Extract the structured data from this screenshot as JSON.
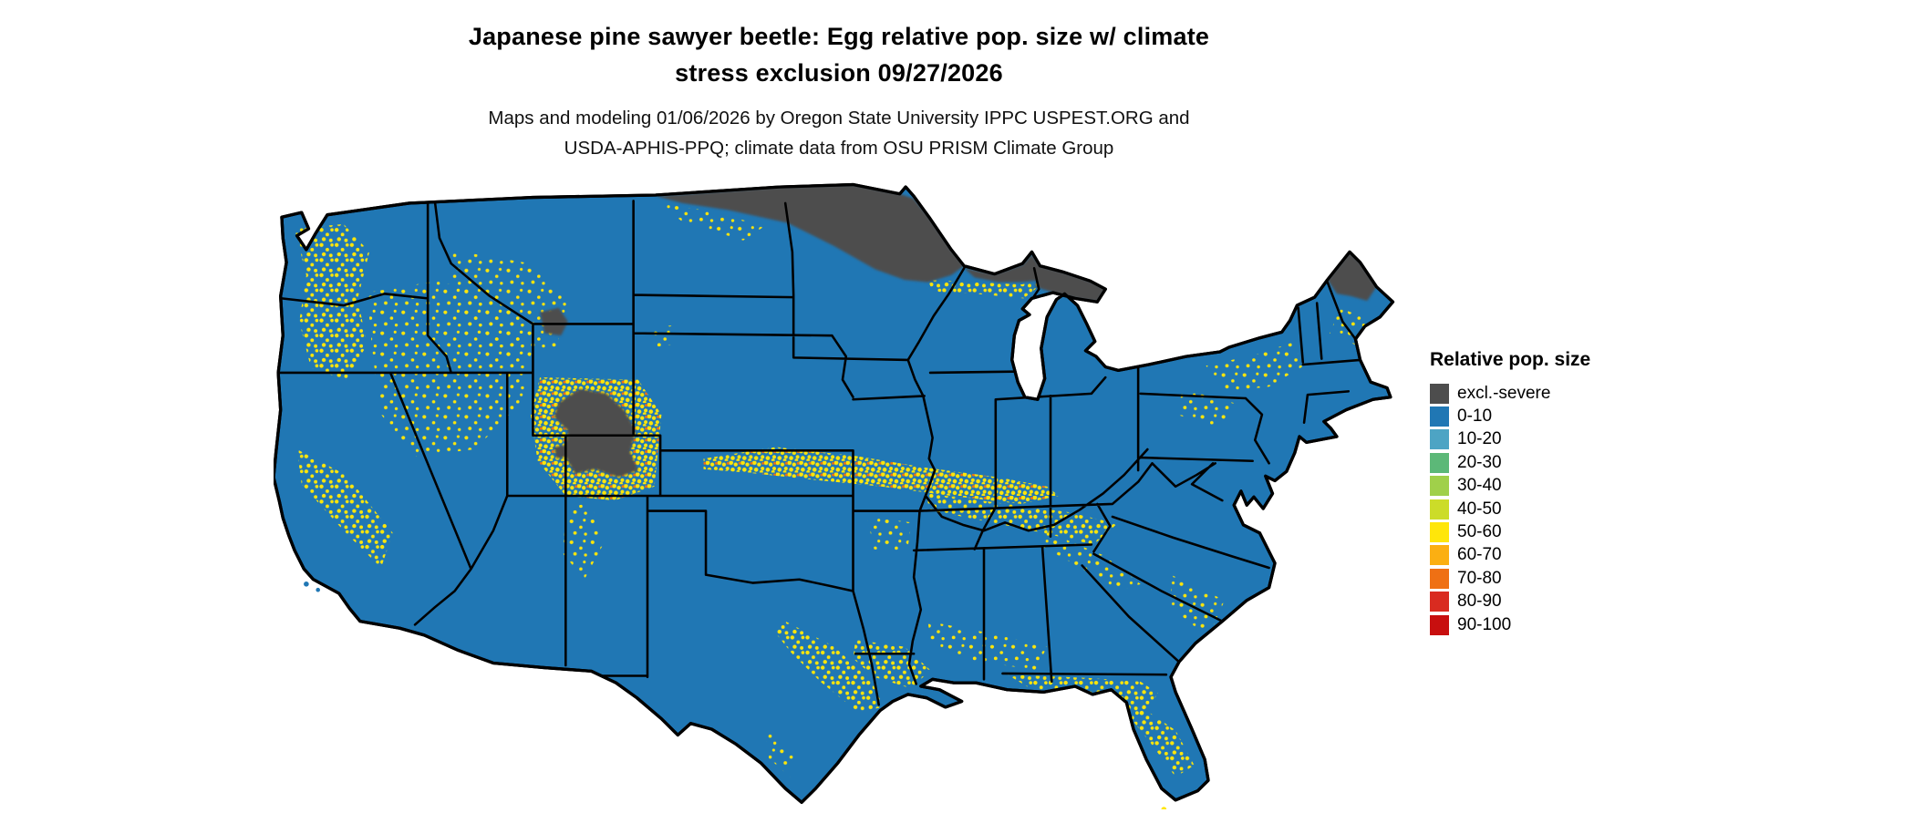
{
  "title": {
    "line1": "Japanese pine sawyer beetle: Egg relative pop. size w/ climate",
    "line2": "stress exclusion 09/27/2026"
  },
  "subtitle": {
    "line1": "Maps and modeling 01/06/2026 by Oregon State University IPPC USPEST.ORG and",
    "line2": "USDA-APHIS-PPQ; climate data from OSU PRISM Climate Group"
  },
  "legend": {
    "title": "Relative pop. size",
    "entries": [
      {
        "label": "excl.-severe",
        "color": "#4d4d4d"
      },
      {
        "label": "0-10",
        "color": "#2077b4"
      },
      {
        "label": "10-20",
        "color": "#4da4c4"
      },
      {
        "label": "20-30",
        "color": "#5cb878"
      },
      {
        "label": "30-40",
        "color": "#a0d04a"
      },
      {
        "label": "40-50",
        "color": "#ccdc29"
      },
      {
        "label": "50-60",
        "color": "#ffe60a"
      },
      {
        "label": "60-70",
        "color": "#fbaf12"
      },
      {
        "label": "70-80",
        "color": "#ef7014"
      },
      {
        "label": "80-90",
        "color": "#d92b20"
      },
      {
        "label": "90-100",
        "color": "#c80f0f"
      }
    ]
  }
}
